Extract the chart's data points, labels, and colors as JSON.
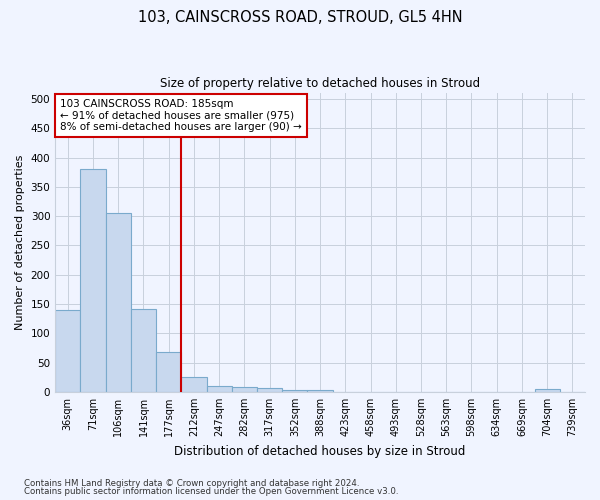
{
  "title": "103, CAINSCROSS ROAD, STROUD, GL5 4HN",
  "subtitle": "Size of property relative to detached houses in Stroud",
  "xlabel": "Distribution of detached houses by size in Stroud",
  "ylabel": "Number of detached properties",
  "bar_labels": [
    "36sqm",
    "71sqm",
    "106sqm",
    "141sqm",
    "177sqm",
    "212sqm",
    "247sqm",
    "282sqm",
    "317sqm",
    "352sqm",
    "388sqm",
    "423sqm",
    "458sqm",
    "493sqm",
    "528sqm",
    "563sqm",
    "598sqm",
    "634sqm",
    "669sqm",
    "704sqm",
    "739sqm"
  ],
  "bar_values": [
    140,
    380,
    305,
    142,
    68,
    25,
    10,
    9,
    6,
    4,
    4,
    0,
    0,
    0,
    0,
    0,
    0,
    0,
    0,
    5,
    0
  ],
  "bar_color": "#c8d8ee",
  "bar_edgecolor": "#7aaacc",
  "vline_x": 4.5,
  "vline_color": "#cc0000",
  "annotation_text": "103 CAINSCROSS ROAD: 185sqm\n← 91% of detached houses are smaller (975)\n8% of semi-detached houses are larger (90) →",
  "annotation_box_color": "#ffffff",
  "annotation_box_edgecolor": "#cc0000",
  "ylim": [
    0,
    510
  ],
  "yticks": [
    0,
    50,
    100,
    150,
    200,
    250,
    300,
    350,
    400,
    450,
    500
  ],
  "footer1": "Contains HM Land Registry data © Crown copyright and database right 2024.",
  "footer2": "Contains public sector information licensed under the Open Government Licence v3.0.",
  "bg_color": "#f0f4ff",
  "grid_color": "#c8d0dc"
}
